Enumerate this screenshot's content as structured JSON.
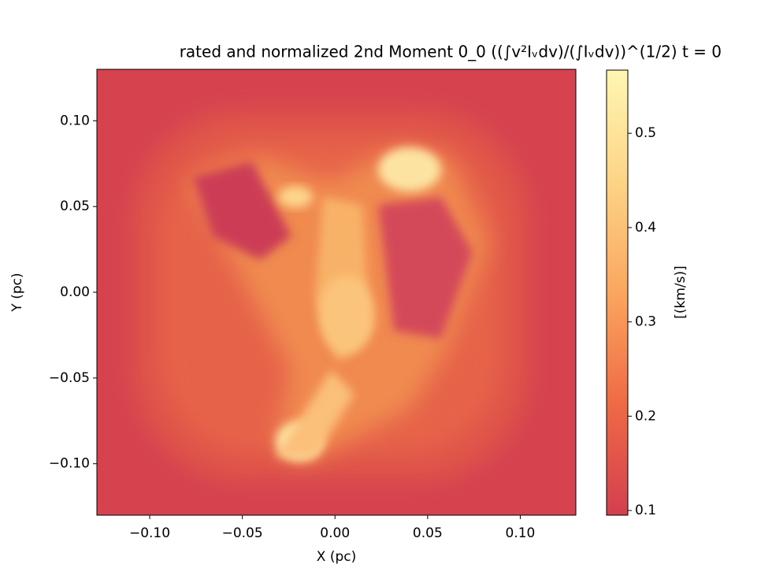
{
  "chart_data": {
    "type": "image",
    "title": "rated and normalized 2nd   Moment 0_0 ((∫v²Iᵥdv)/(∫Iᵥdv))^(1/2)   t = 0",
    "x_label": "X   (pc)",
    "y_label": "Y  (pc)",
    "colorbar_label": "[(km/s)]",
    "xlim": [
      -0.1285,
      0.13
    ],
    "ylim": [
      -0.13,
      0.13
    ],
    "xticks": [
      {
        "value": -0.1,
        "label": "−0.10"
      },
      {
        "value": -0.05,
        "label": "−0.05"
      },
      {
        "value": 0,
        "label": "0.00"
      },
      0.05,
      {
        "value": 0.1,
        "label": "0.10"
      }
    ],
    "yticks": [
      {
        "value": -0.1,
        "label": "−0.10"
      },
      {
        "value": -0.05,
        "label": "−0.05"
      },
      {
        "value": 0,
        "label": "0.00"
      },
      0.05,
      {
        "value": 0.1,
        "label": "0.10"
      }
    ],
    "clim": [
      0.095,
      0.567
    ],
    "cticks": [
      0.1,
      0.2,
      0.3,
      0.4,
      0.5
    ],
    "colormap": [
      "#d33f4f",
      "#ef6a45",
      "#fba65e",
      "#fdd486",
      "#fff6b2"
    ]
  }
}
